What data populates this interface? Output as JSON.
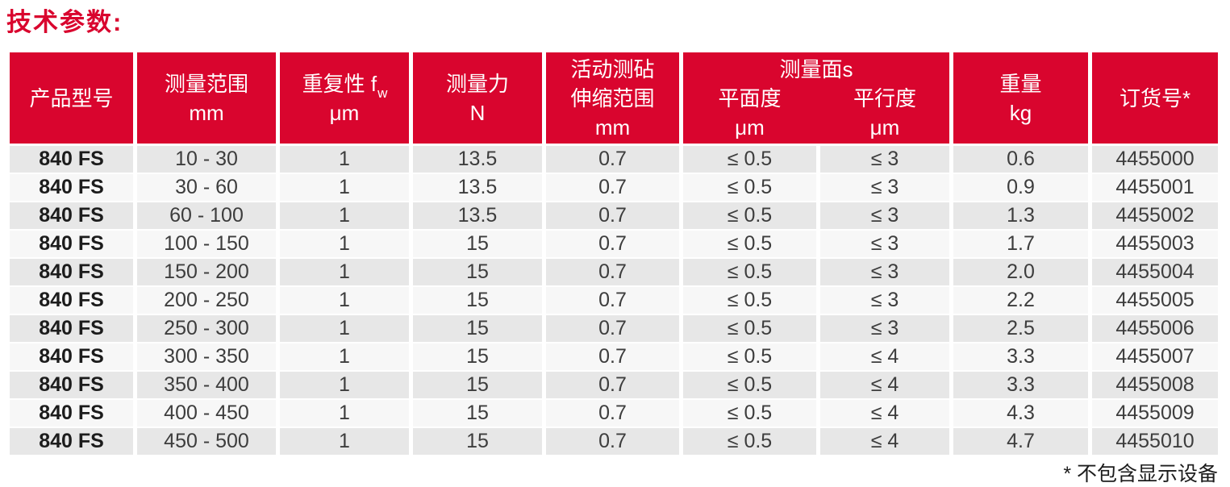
{
  "title": "技术参数:",
  "footnote": "* 不包含显示设备",
  "colors": {
    "red": "#d9052e",
    "row_gray": "#e7e7e7",
    "row_light": "#f7f7f7"
  },
  "table": {
    "headers": {
      "product_model": {
        "lines": [
          "产品型号"
        ]
      },
      "measuring_range": {
        "lines": [
          "测量范围",
          "mm"
        ]
      },
      "repeatability": {
        "line1": "重复性 f",
        "sub": "w",
        "unit": "μm"
      },
      "measuring_force": {
        "lines": [
          "测量力",
          "N"
        ]
      },
      "anvil_travel": {
        "lines": [
          "活动测砧",
          "伸缩范围",
          "mm"
        ]
      },
      "measuring_faces": {
        "group": "测量面s",
        "cols": [
          {
            "label": "平面度",
            "unit": "μm"
          },
          {
            "label": "平行度",
            "unit": "μm"
          }
        ]
      },
      "weight": {
        "lines": [
          "重量",
          "kg"
        ]
      },
      "order_number": {
        "lines": [
          "订货号*"
        ]
      }
    },
    "rows": [
      [
        "840 FS",
        "10 - 30",
        "1",
        "13.5",
        "0.7",
        "≤ 0.5",
        "≤ 3",
        "0.6",
        "4455000"
      ],
      [
        "840 FS",
        "30 - 60",
        "1",
        "13.5",
        "0.7",
        "≤ 0.5",
        "≤ 3",
        "0.9",
        "4455001"
      ],
      [
        "840 FS",
        "60 - 100",
        "1",
        "13.5",
        "0.7",
        "≤ 0.5",
        "≤ 3",
        "1.3",
        "4455002"
      ],
      [
        "840 FS",
        "100 - 150",
        "1",
        "15",
        "0.7",
        "≤ 0.5",
        "≤ 3",
        "1.7",
        "4455003"
      ],
      [
        "840 FS",
        "150 - 200",
        "1",
        "15",
        "0.7",
        "≤ 0.5",
        "≤ 3",
        "2.0",
        "4455004"
      ],
      [
        "840 FS",
        "200 - 250",
        "1",
        "15",
        "0.7",
        "≤ 0.5",
        "≤ 3",
        "2.2",
        "4455005"
      ],
      [
        "840 FS",
        "250 - 300",
        "1",
        "15",
        "0.7",
        "≤ 0.5",
        "≤ 3",
        "2.5",
        "4455006"
      ],
      [
        "840 FS",
        "300 - 350",
        "1",
        "15",
        "0.7",
        "≤ 0.5",
        "≤ 4",
        "3.3",
        "4455007"
      ],
      [
        "840 FS",
        "350 - 400",
        "1",
        "15",
        "0.7",
        "≤ 0.5",
        "≤ 4",
        "3.3",
        "4455008"
      ],
      [
        "840 FS",
        "400 - 450",
        "1",
        "15",
        "0.7",
        "≤ 0.5",
        "≤ 4",
        "4.3",
        "4455009"
      ],
      [
        "840 FS",
        "450 - 500",
        "1",
        "15",
        "0.7",
        "≤ 0.5",
        "≤ 4",
        "4.7",
        "4455010"
      ]
    ]
  }
}
